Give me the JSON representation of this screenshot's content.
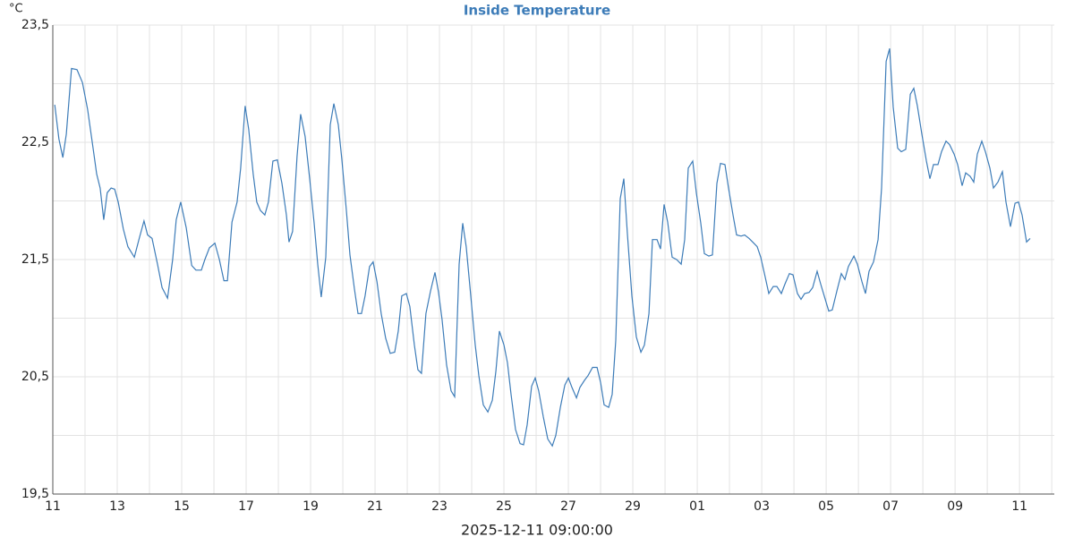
{
  "chart_data": {
    "type": "line",
    "title": "Inside Temperature",
    "y_unit": "°C",
    "x_label": "2025-12-11 09:00:00",
    "color": "#3d7cb8",
    "grid": true,
    "xlim": [
      0,
      31.08
    ],
    "ylim": [
      19.5,
      23.5
    ],
    "xticks": [
      {
        "value": 0,
        "label": "11"
      },
      {
        "value": 2,
        "label": "13"
      },
      {
        "value": 4,
        "label": "15"
      },
      {
        "value": 6,
        "label": "17"
      },
      {
        "value": 8,
        "label": "19"
      },
      {
        "value": 10,
        "label": "21"
      },
      {
        "value": 12,
        "label": "23"
      },
      {
        "value": 14,
        "label": "25"
      },
      {
        "value": 16,
        "label": "27"
      },
      {
        "value": 18,
        "label": "29"
      },
      {
        "value": 20,
        "label": "01"
      },
      {
        "value": 22,
        "label": "03"
      },
      {
        "value": 24,
        "label": "05"
      },
      {
        "value": 26,
        "label": "07"
      },
      {
        "value": 28,
        "label": "09"
      },
      {
        "value": 30,
        "label": "11"
      }
    ],
    "x_minor_ticks": [
      1,
      3,
      5,
      7,
      9,
      11,
      13,
      15,
      17,
      19,
      21,
      23,
      25,
      27,
      29,
      31
    ],
    "yticks": [
      {
        "value": 19.5,
        "label": "19,5"
      },
      {
        "value": 20.5,
        "label": "20,5"
      },
      {
        "value": 21.5,
        "label": "21,5"
      },
      {
        "value": 22.5,
        "label": "22,5"
      },
      {
        "value": 23.5,
        "label": "23,5"
      }
    ],
    "y_minor_ticks": [
      20,
      21,
      22,
      23
    ],
    "x": [
      0.06,
      0.19,
      0.31,
      0.42,
      0.58,
      0.75,
      0.92,
      1.08,
      1.25,
      1.36,
      1.47,
      1.58,
      1.69,
      1.81,
      1.92,
      2.03,
      2.19,
      2.33,
      2.53,
      2.69,
      2.83,
      2.94,
      3.08,
      3.25,
      3.39,
      3.56,
      3.72,
      3.83,
      3.97,
      4.14,
      4.31,
      4.44,
      4.61,
      4.72,
      4.86,
      5.03,
      5.17,
      5.31,
      5.42,
      5.56,
      5.72,
      5.83,
      5.97,
      6.08,
      6.22,
      6.33,
      6.44,
      6.58,
      6.69,
      6.83,
      6.97,
      7.11,
      7.25,
      7.33,
      7.44,
      7.58,
      7.69,
      7.83,
      7.97,
      8.11,
      8.22,
      8.33,
      8.47,
      8.61,
      8.72,
      8.86,
      8.97,
      9.11,
      9.22,
      9.36,
      9.47,
      9.58,
      9.69,
      9.83,
      9.94,
      10.06,
      10.19,
      10.33,
      10.47,
      10.61,
      10.72,
      10.83,
      10.97,
      11.08,
      11.22,
      11.33,
      11.44,
      11.58,
      11.72,
      11.86,
      11.97,
      12.08,
      12.22,
      12.36,
      12.47,
      12.61,
      12.72,
      12.83,
      12.97,
      13.11,
      13.22,
      13.36,
      13.5,
      13.64,
      13.75,
      13.86,
      14,
      14.11,
      14.22,
      14.36,
      14.5,
      14.61,
      14.72,
      14.86,
      14.97,
      15.08,
      15.22,
      15.36,
      15.5,
      15.61,
      15.75,
      15.89,
      16,
      16.11,
      16.25,
      16.36,
      16.5,
      16.61,
      16.75,
      16.89,
      17,
      17.11,
      17.25,
      17.36,
      17.47,
      17.61,
      17.72,
      17.83,
      17.97,
      18.11,
      18.25,
      18.36,
      18.5,
      18.61,
      18.75,
      18.86,
      18.97,
      19.08,
      19.22,
      19.36,
      19.5,
      19.61,
      19.72,
      19.86,
      19.97,
      20.11,
      20.22,
      20.36,
      20.47,
      20.61,
      20.72,
      20.86,
      20.97,
      21.11,
      21.22,
      21.36,
      21.47,
      21.61,
      21.72,
      21.86,
      21.97,
      22.11,
      22.22,
      22.36,
      22.47,
      22.61,
      22.72,
      22.86,
      22.97,
      23.11,
      23.22,
      23.33,
      23.47,
      23.58,
      23.72,
      23.83,
      23.94,
      24.08,
      24.19,
      24.33,
      24.47,
      24.58,
      24.69,
      24.86,
      24.97,
      25.11,
      25.22,
      25.33,
      25.47,
      25.61,
      25.72,
      25.86,
      25.97,
      26.08,
      26.22,
      26.33,
      26.47,
      26.61,
      26.72,
      26.83,
      26.97,
      27.11,
      27.22,
      27.33,
      27.47,
      27.58,
      27.72,
      27.83,
      27.97,
      28.08,
      28.22,
      28.33,
      28.47,
      28.58,
      28.69,
      28.83,
      28.94,
      29.08,
      29.19,
      29.33,
      29.47,
      29.58,
      29.72,
      29.86,
      29.97,
      30.08,
      30.22,
      30.33
    ],
    "values": [
      22.82,
      22.53,
      22.37,
      22.57,
      23.13,
      23.12,
      23.01,
      22.78,
      22.45,
      22.23,
      22.11,
      21.84,
      22.07,
      22.11,
      22.1,
      21.99,
      21.76,
      21.61,
      21.52,
      21.69,
      21.83,
      21.71,
      21.68,
      21.46,
      21.26,
      21.17,
      21.5,
      21.84,
      21.99,
      21.77,
      21.45,
      21.41,
      21.41,
      21.5,
      21.6,
      21.64,
      21.5,
      21.32,
      21.32,
      21.82,
      21.99,
      22.28,
      22.81,
      22.61,
      22.23,
      21.99,
      21.92,
      21.88,
      21.99,
      22.34,
      22.35,
      22.15,
      21.88,
      21.65,
      21.74,
      22.38,
      22.74,
      22.55,
      22.19,
      21.81,
      21.46,
      21.18,
      21.52,
      22.65,
      22.83,
      22.65,
      22.35,
      21.92,
      21.54,
      21.25,
      21.04,
      21.04,
      21.19,
      21.44,
      21.48,
      21.31,
      21.04,
      20.83,
      20.7,
      20.71,
      20.89,
      21.19,
      21.21,
      21.1,
      20.77,
      20.56,
      20.53,
      21.04,
      21.23,
      21.39,
      21.22,
      20.99,
      20.6,
      20.38,
      20.33,
      21.46,
      21.81,
      21.61,
      21.19,
      20.77,
      20.51,
      20.26,
      20.2,
      20.3,
      20.55,
      20.89,
      20.77,
      20.62,
      20.35,
      20.05,
      19.93,
      19.92,
      20.09,
      20.42,
      20.49,
      20.38,
      20.16,
      19.97,
      19.91,
      20,
      20.24,
      20.43,
      20.49,
      20.41,
      20.32,
      20.41,
      20.47,
      20.51,
      20.58,
      20.58,
      20.45,
      20.26,
      20.24,
      20.35,
      20.81,
      22.02,
      22.19,
      21.73,
      21.19,
      20.84,
      20.71,
      20.77,
      21.04,
      21.67,
      21.67,
      21.59,
      21.97,
      21.82,
      21.52,
      21.5,
      21.46,
      21.67,
      22.28,
      22.34,
      22.07,
      21.81,
      21.55,
      21.53,
      21.54,
      22.15,
      22.32,
      22.31,
      22.11,
      21.88,
      21.71,
      21.7,
      21.71,
      21.68,
      21.65,
      21.61,
      21.52,
      21.35,
      21.21,
      21.27,
      21.27,
      21.21,
      21.29,
      21.38,
      21.37,
      21.21,
      21.16,
      21.21,
      21.22,
      21.26,
      21.4,
      21.29,
      21.19,
      21.06,
      21.07,
      21.23,
      21.38,
      21.33,
      21.44,
      21.53,
      21.46,
      21.31,
      21.21,
      21.4,
      21.48,
      21.67,
      22.11,
      23.19,
      23.3,
      22.8,
      22.45,
      22.42,
      22.44,
      22.91,
      22.96,
      22.81,
      22.57,
      22.34,
      22.19,
      22.31,
      22.31,
      22.42,
      22.51,
      22.48,
      22.4,
      22.31,
      22.13,
      22.24,
      22.21,
      22.16,
      22.4,
      22.51,
      22.42,
      22.28,
      22.11,
      22.16,
      22.25,
      21.99,
      21.78,
      21.98,
      21.99,
      21.88,
      21.65,
      21.68
    ]
  }
}
